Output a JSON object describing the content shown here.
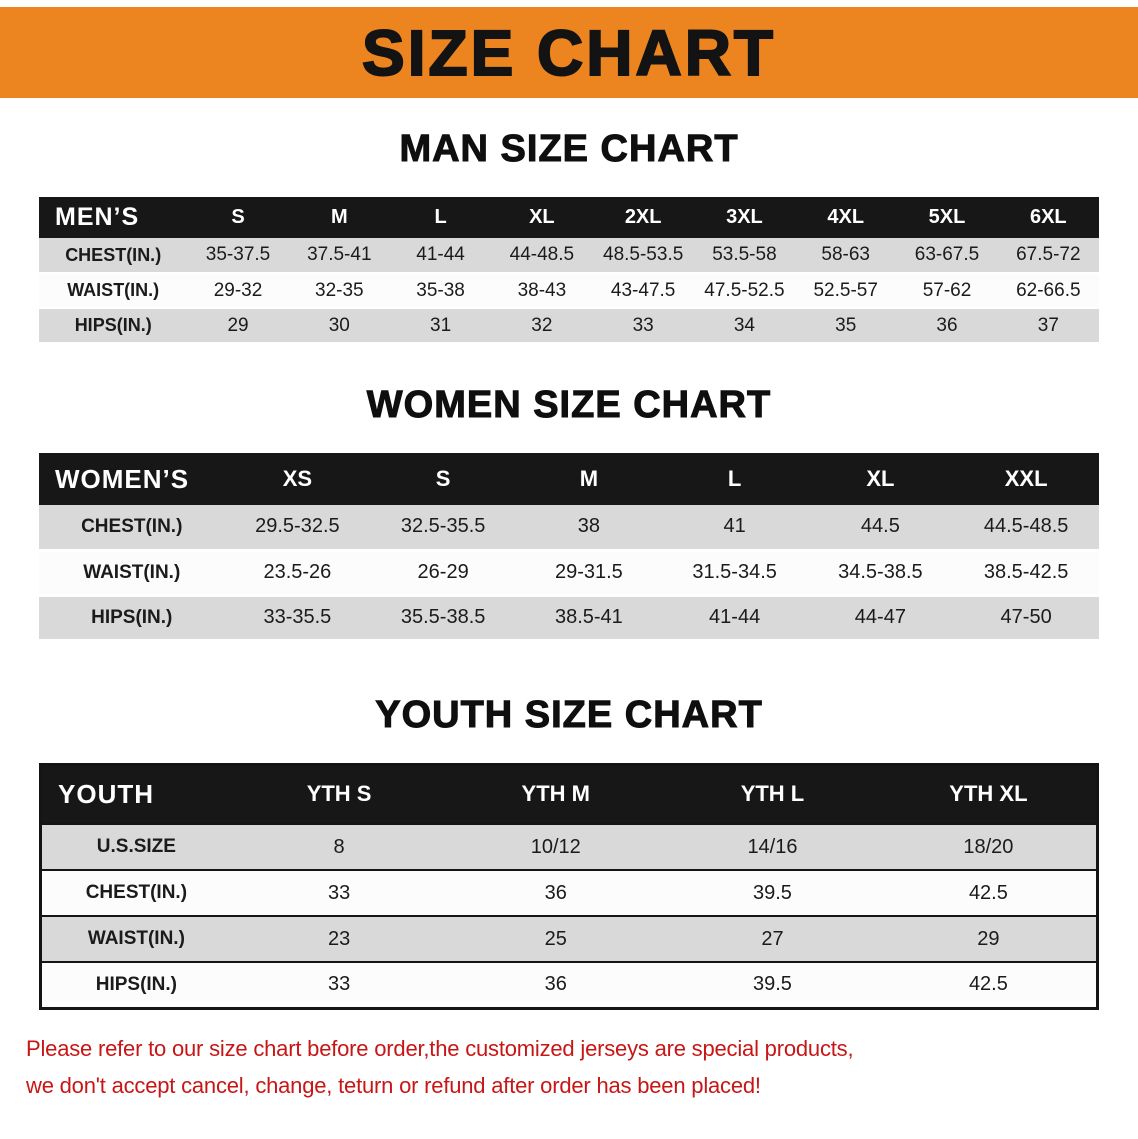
{
  "banner": {
    "title": "SIZE CHART"
  },
  "colors": {
    "banner_bg": "#ec8420",
    "header_bg": "#171717",
    "row_gray": "#d9d9d9",
    "row_white": "#fcfcfc",
    "disclaimer_red": "#c81616"
  },
  "chart_data": [
    {
      "type": "table",
      "title": "MAN SIZE CHART",
      "columns": [
        "MEN’S",
        "S",
        "M",
        "L",
        "XL",
        "2XL",
        "3XL",
        "4XL",
        "5XL",
        "6XL"
      ],
      "rows": [
        [
          "CHEST(IN.)",
          "35-37.5",
          "37.5-41",
          "41-44",
          "44-48.5",
          "48.5-53.5",
          "53.5-58",
          "58-63",
          "63-67.5",
          "67.5-72"
        ],
        [
          "WAIST(IN.)",
          "29-32",
          "32-35",
          "35-38",
          "38-43",
          "43-47.5",
          "47.5-52.5",
          "52.5-57",
          "57-62",
          "62-66.5"
        ],
        [
          "HIPS(IN.)",
          "29",
          "30",
          "31",
          "32",
          "33",
          "34",
          "35",
          "36",
          "37"
        ]
      ]
    },
    {
      "type": "table",
      "title": "WOMEN SIZE CHART",
      "columns": [
        "WOMEN’S",
        "XS",
        "S",
        "M",
        "L",
        "XL",
        "XXL"
      ],
      "rows": [
        [
          "CHEST(IN.)",
          "29.5-32.5",
          "32.5-35.5",
          "38",
          "41",
          "44.5",
          "44.5-48.5"
        ],
        [
          "WAIST(IN.)",
          "23.5-26",
          "26-29",
          "29-31.5",
          "31.5-34.5",
          "34.5-38.5",
          "38.5-42.5"
        ],
        [
          "HIPS(IN.)",
          "33-35.5",
          "35.5-38.5",
          "38.5-41",
          "41-44",
          "44-47",
          "47-50"
        ]
      ]
    },
    {
      "type": "table",
      "title": "YOUTH SIZE CHART",
      "columns": [
        "YOUTH",
        "YTH S",
        "YTH M",
        "YTH L",
        "YTH XL"
      ],
      "rows": [
        [
          "U.S.SIZE",
          "8",
          "10/12",
          "14/16",
          "18/20"
        ],
        [
          "CHEST(IN.)",
          "33",
          "36",
          "39.5",
          "42.5"
        ],
        [
          "WAIST(IN.)",
          "23",
          "25",
          "27",
          "29"
        ],
        [
          "HIPS(IN.)",
          "33",
          "36",
          "39.5",
          "42.5"
        ]
      ]
    }
  ],
  "disclaimer": {
    "line1": "Please refer to our size chart before order,the customized jerseys are special products,",
    "line2": "we don't accept cancel, change, teturn or refund after order has been placed!"
  }
}
